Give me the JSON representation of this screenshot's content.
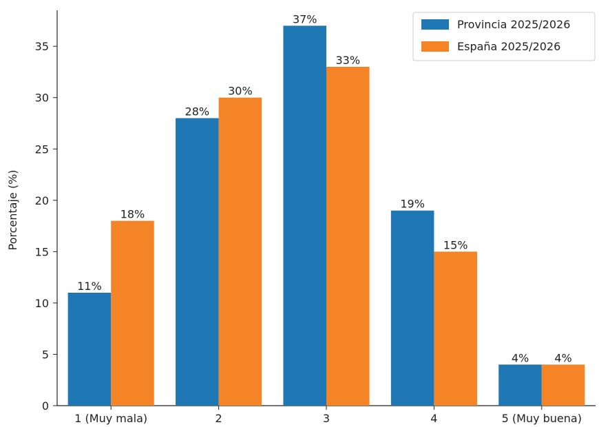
{
  "chart_data": {
    "type": "bar",
    "title": "",
    "xlabel": "",
    "ylabel": "Porcentaje (%)",
    "categories": [
      "1 (Muy mala)",
      "2",
      "3",
      "4",
      "5 (Muy buena)"
    ],
    "series": [
      {
        "name": "Provincia 2025/2026",
        "color": "#1f77b4",
        "values": [
          11,
          28,
          37,
          19,
          4
        ],
        "labels": [
          "11%",
          "28%",
          "37%",
          "19%",
          "4%"
        ]
      },
      {
        "name": "España 2025/2026",
        "color": "#f58426",
        "values": [
          18,
          30,
          33,
          15,
          4
        ],
        "labels": [
          "18%",
          "30%",
          "33%",
          "15%",
          "4%"
        ]
      }
    ],
    "ylim": [
      0,
      38.5
    ],
    "yticks": [
      0,
      5,
      10,
      15,
      20,
      25,
      30,
      35
    ],
    "grid": false,
    "legend_position": "top-right"
  }
}
